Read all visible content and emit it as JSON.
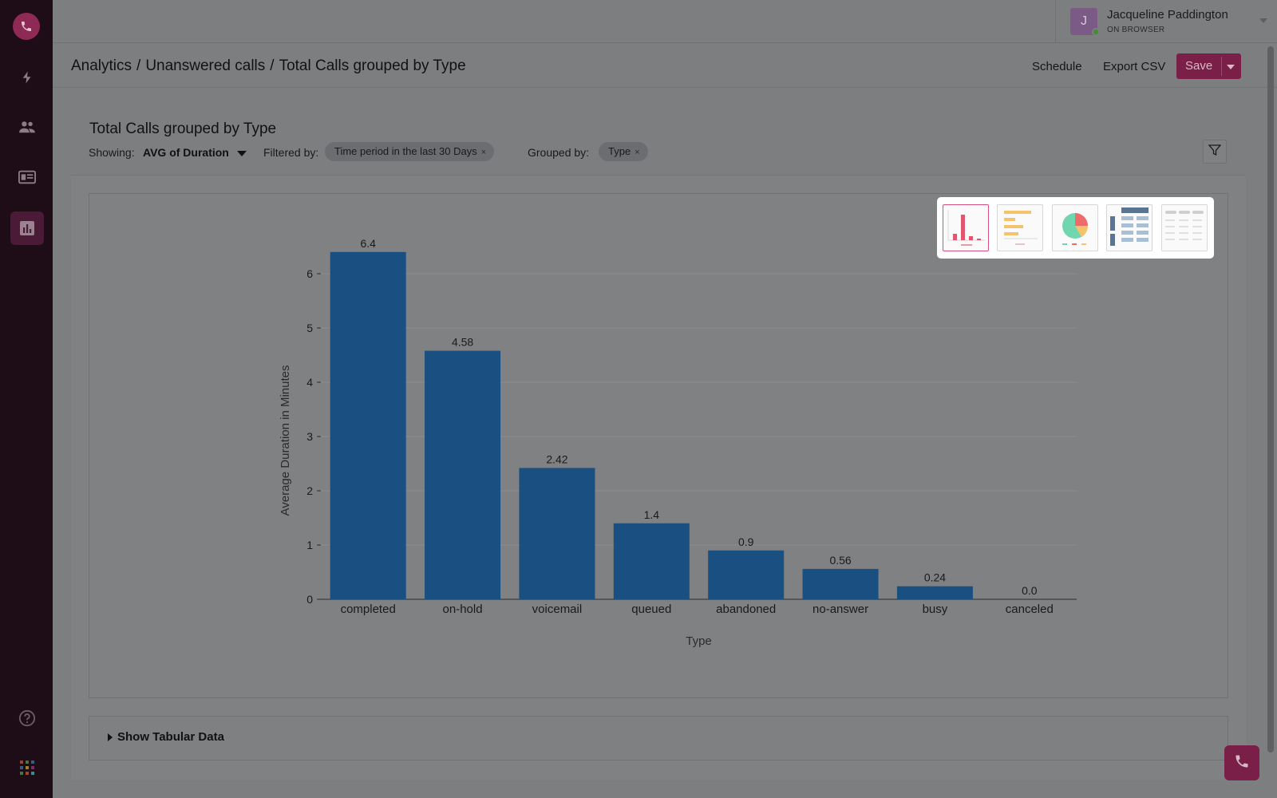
{
  "user": {
    "name": "Jacqueline Paddington",
    "status": "ON BROWSER",
    "initial": "J"
  },
  "breadcrumb": [
    "Analytics",
    "Unanswered calls",
    "Total Calls grouped by Type"
  ],
  "breadcrumb_sep": "/",
  "header": {
    "schedule": "Schedule",
    "export": "Export CSV",
    "save": "Save"
  },
  "card": {
    "title": "Total Calls grouped by Type",
    "showing_label": "Showing:",
    "showing_value": "AVG of Duration",
    "filtered_label": "Filtered by:",
    "filter_chip": "Time period in the last 30 Days",
    "grouped_label": "Grouped by:",
    "group_chip": "Type",
    "chip_close": "×"
  },
  "tabular": {
    "label": "Show Tabular Data"
  },
  "colors": {
    "bar": "#1a4f82",
    "accent": "#7a1f47",
    "sidebar": "#1e0c17"
  },
  "icons": {
    "nav": [
      "bolt-icon",
      "people-icon",
      "contact-card-icon",
      "analytics-icon"
    ],
    "bottom": [
      "help-icon",
      "apps-grid-icon"
    ]
  },
  "chart_types": [
    "bar",
    "horizontal-bar",
    "pie",
    "pivot-table",
    "table"
  ],
  "chart_data": {
    "type": "bar",
    "categories": [
      "completed",
      "on-hold",
      "voicemail",
      "queued",
      "abandoned",
      "no-answer",
      "busy",
      "canceled"
    ],
    "values": [
      6.4,
      4.58,
      2.42,
      1.4,
      0.9,
      0.56,
      0.24,
      0.0
    ],
    "value_labels": [
      "6.4",
      "4.58",
      "2.42",
      "1.4",
      "0.9",
      "0.56",
      "0.24",
      "0.0"
    ],
    "xlabel": "Type",
    "ylabel": "Average Duration in Minutes",
    "ylim": [
      0,
      6.5
    ],
    "yticks": [
      0,
      1,
      2,
      3,
      4,
      5,
      6
    ],
    "grid": true
  }
}
